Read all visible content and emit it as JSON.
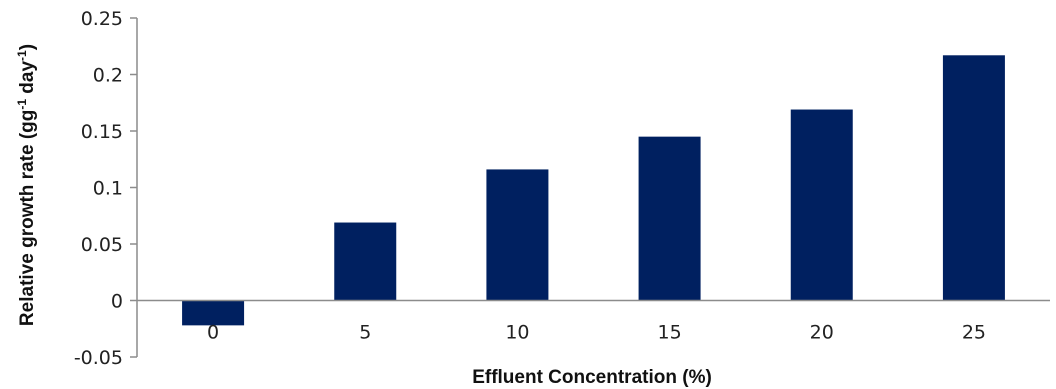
{
  "chart_data": {
    "type": "bar",
    "categories": [
      "0",
      "5",
      "10",
      "15",
      "20",
      "25"
    ],
    "values": [
      -0.022,
      0.069,
      0.116,
      0.145,
      0.169,
      0.217
    ],
    "xlabel": "Effluent Concentration (%)",
    "ylabel": {
      "part1": "Relative growth rate (gg",
      "sup1": "-1",
      "part2": " day",
      "sup2": "-1",
      "part3": ")"
    },
    "ylim": [
      -0.05,
      0.25
    ],
    "yticks": [
      -0.05,
      0,
      0.05,
      0.1,
      0.15,
      0.2,
      0.25
    ],
    "ytick_labels": [
      "-0.05",
      "0",
      "0.05",
      "0.1",
      "0.15",
      "0.2",
      "0.25"
    ],
    "grid": false,
    "legend": "none",
    "colors": {
      "bar": "#002060",
      "axis": "#8c8c8c"
    }
  }
}
